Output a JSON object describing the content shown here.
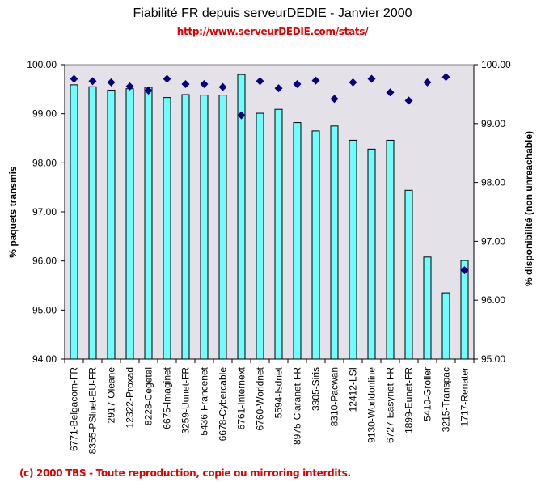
{
  "header": {
    "title": "Fiabilité FR depuis serveurDEDIE - Janvier 2000",
    "subtitle": "http://www.serveurDEDIE.com/stats/"
  },
  "footer": {
    "copyright": "(c) 2000 TBS - Toute reproduction, copie ou mirroring interdits."
  },
  "colors": {
    "plot_background": "#e4e2e8",
    "bar_fill": "#6ffdfd",
    "bar_stroke": "#000000",
    "marker": "#000080",
    "title_accent": "#e00000"
  },
  "chart_data": {
    "type": "bar",
    "title": "Fiabilité FR depuis serveurDEDIE - Janvier 2000",
    "subtitle": "http://www.serveurDEDIE.com/stats/",
    "xlabel": "",
    "ylabel": "% paquets transmis",
    "y2label": "% disponibilité (non unreachable)",
    "ylim": [
      94,
      100
    ],
    "y2lim": [
      95,
      100
    ],
    "yticks": [
      "94.00",
      "95.00",
      "96.00",
      "97.00",
      "98.00",
      "99.00",
      "100.00"
    ],
    "y2ticks": [
      "95.00",
      "96.00",
      "97.00",
      "98.00",
      "99.00",
      "100.00"
    ],
    "grid": false,
    "legend": "none",
    "categories": [
      "6771-Belgacom-FR",
      "8355-PSInet-EU-FR",
      "2917-Oleane",
      "12322-Proxad",
      "8228-Cegetel",
      "6675-Imaginet",
      "3259-Uunet-FR",
      "5436-Francenet",
      "6678-Cybercable",
      "6761-Internext",
      "6760-Worldnet",
      "5594-Isdnet",
      "8975-Claranet-FR",
      "3305-Siris",
      "8310-Pacwan",
      "12412-LSI",
      "9130-Worldonline",
      "6727-Easynet-FR",
      "1899-Eunet-FR",
      "5410-Grolier",
      "3215-Transpac",
      "1717-Renater"
    ],
    "series": [
      {
        "name": "% paquets transmis",
        "type": "bar",
        "axis": "left",
        "values": [
          99.59,
          99.55,
          99.48,
          99.51,
          99.54,
          99.33,
          99.39,
          99.38,
          99.38,
          99.8,
          99.01,
          99.09,
          98.82,
          98.65,
          98.75,
          98.46,
          98.28,
          98.46,
          97.44,
          96.08,
          95.35,
          96.01
        ]
      },
      {
        "name": "% disponibilité (non unreachable)",
        "type": "scatter",
        "axis": "right",
        "marker": "diamond",
        "values": [
          99.76,
          99.72,
          99.7,
          99.63,
          99.56,
          99.76,
          99.67,
          99.67,
          99.62,
          99.14,
          99.72,
          99.6,
          99.67,
          99.73,
          99.42,
          99.7,
          99.76,
          99.53,
          99.39,
          99.7,
          99.79,
          96.51
        ]
      }
    ]
  }
}
